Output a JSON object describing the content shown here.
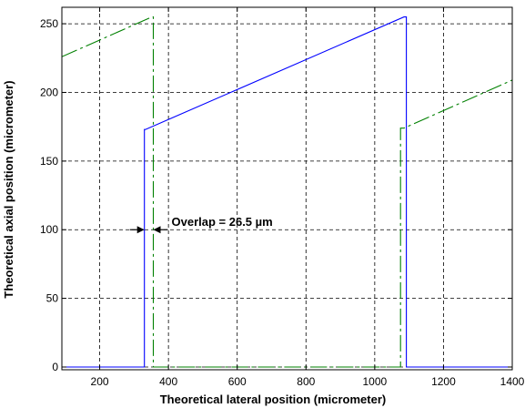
{
  "chart_data": {
    "type": "line",
    "title": "",
    "xlabel": "Theoretical lateral position (micrometer)",
    "ylabel": "Theoretical axial position (micrometer)",
    "xlim": [
      90,
      1400
    ],
    "ylim": [
      -2,
      262
    ],
    "xticks": [
      200,
      400,
      600,
      800,
      1000,
      1200,
      1400
    ],
    "yticks": [
      0,
      50,
      100,
      150,
      200,
      250
    ],
    "grid": true,
    "series": [
      {
        "color": "#0000ff",
        "style": "solid",
        "x": [
          90,
          330,
          330,
          333,
          1085,
          1092,
          1092,
          1400
        ],
        "y": [
          0,
          0,
          173,
          173,
          255,
          255,
          0,
          0
        ]
      },
      {
        "color": "#008000",
        "style": "dashed",
        "x": [
          90,
          352,
          356,
          356,
          1075,
          1075,
          1085,
          1400
        ],
        "y": [
          226,
          255,
          255,
          0,
          0,
          174,
          174,
          209
        ]
      }
    ],
    "annotations": [
      {
        "text": "Overlap = 26.5 µm",
        "x1": 330,
        "x2": 356,
        "y": 100
      }
    ]
  }
}
